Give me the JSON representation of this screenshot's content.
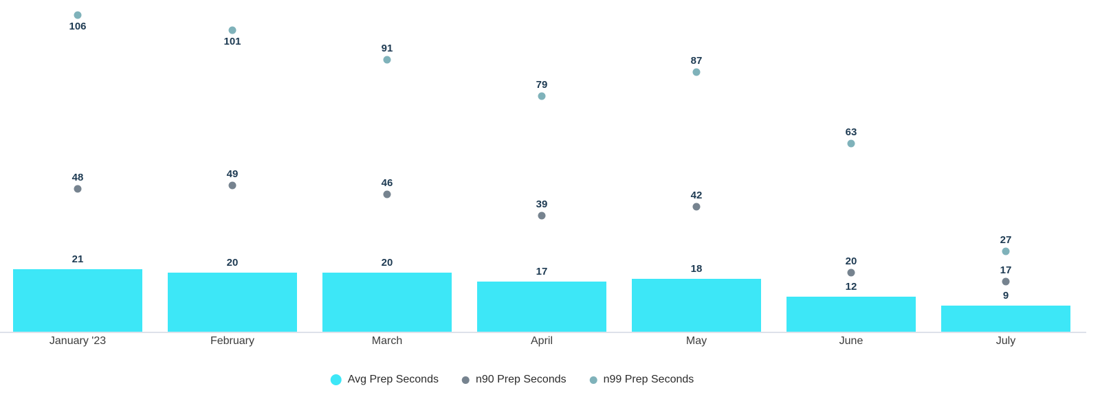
{
  "chart_data": {
    "type": "bar",
    "title": "",
    "xlabel": "",
    "ylabel": "",
    "categories": [
      "January '23",
      "February",
      "March",
      "April",
      "May",
      "June",
      "July"
    ],
    "series": [
      {
        "name": "Avg Prep Seconds",
        "render": "bar",
        "color": "#3de7f7",
        "values": [
          21,
          20,
          20,
          17,
          18,
          12,
          9
        ]
      },
      {
        "name": "n90 Prep Seconds",
        "render": "scatter",
        "color": "#76838f",
        "values": [
          48,
          49,
          46,
          39,
          42,
          20,
          17
        ]
      },
      {
        "name": "n99 Prep Seconds",
        "render": "scatter",
        "color": "#7fb2ba",
        "values": [
          106,
          101,
          91,
          79,
          87,
          63,
          27
        ]
      }
    ],
    "ylim": [
      0,
      111
    ],
    "grid": false,
    "legend_position": "bottom",
    "colors": {
      "value_label": "#1d3a52",
      "axis_label": "#3b3b3b",
      "axis_line": "#dde1ea",
      "background": "#ffffff"
    }
  }
}
